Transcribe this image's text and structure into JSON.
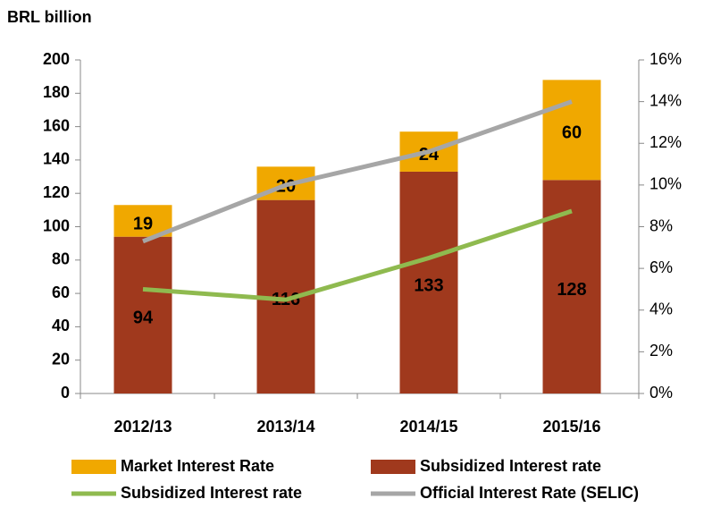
{
  "chart_data": {
    "type": "bar",
    "subtype": "stacked",
    "y_axis_label": "BRL billion",
    "categories": [
      "2012/13",
      "2013/14",
      "2014/15",
      "2015/16"
    ],
    "series": [
      {
        "name": "Subsidized Interest rate",
        "color": "#a0391d",
        "values": [
          94,
          116,
          133,
          128
        ]
      },
      {
        "name": "Market Interest Rate",
        "color": "#f0a800",
        "values": [
          19,
          20,
          24,
          60
        ]
      }
    ],
    "line_series": [
      {
        "name": "Subsidized Interest rate",
        "color": "#8fba4f",
        "axis": "y2",
        "values": [
          5.0,
          4.5,
          6.5,
          8.75
        ]
      },
      {
        "name": "Official Interest Rate (SELIC)",
        "color": "#a6a6a6",
        "axis": "y2",
        "values": [
          7.3,
          10.0,
          11.6,
          14.0
        ]
      }
    ],
    "ylim": [
      0,
      200
    ],
    "yticks": [
      0,
      20,
      40,
      60,
      80,
      100,
      120,
      140,
      160,
      180,
      200
    ],
    "y2lim": [
      0,
      16
    ],
    "y2ticks": [
      {
        "value": 0,
        "label": "0%"
      },
      {
        "value": 2,
        "label": "2%"
      },
      {
        "value": 4,
        "label": "4%"
      },
      {
        "value": 6,
        "label": "6%"
      },
      {
        "value": 8,
        "label": "8%"
      },
      {
        "value": 10,
        "label": "10%"
      },
      {
        "value": 12,
        "label": "12%"
      },
      {
        "value": 14,
        "label": "14%"
      },
      {
        "value": 16,
        "label": "16%"
      }
    ]
  }
}
